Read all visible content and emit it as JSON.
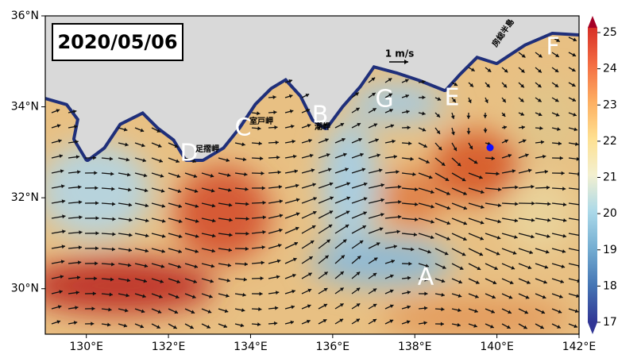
{
  "map": {
    "title": "2020/05/06",
    "xlim": [
      129,
      142
    ],
    "ylim": [
      29,
      36
    ],
    "xticks": [
      {
        "value": 130,
        "label": "130°E"
      },
      {
        "value": 132,
        "label": "132°E"
      },
      {
        "value": 134,
        "label": "134°E"
      },
      {
        "value": 136,
        "label": "136°E"
      },
      {
        "value": 138,
        "label": "138°E"
      },
      {
        "value": 140,
        "label": "140°E"
      },
      {
        "value": 142,
        "label": "142°E"
      }
    ],
    "yticks": [
      {
        "value": 30,
        "label": "30°N"
      },
      {
        "value": 32,
        "label": "32°N"
      },
      {
        "value": 34,
        "label": "34°N"
      },
      {
        "value": 36,
        "label": "36°N"
      }
    ],
    "colorbar": {
      "lim": [
        17,
        25
      ],
      "ticks": [
        17,
        18,
        19,
        20,
        21,
        22,
        23,
        24,
        25
      ]
    },
    "scale_label": "1 m/s",
    "region_labels": [
      "A",
      "B",
      "C",
      "D",
      "E",
      "F",
      "G"
    ],
    "place_labels": [
      "室戸岬",
      "潮岬",
      "足摺岬",
      "房総半島"
    ]
  }
}
